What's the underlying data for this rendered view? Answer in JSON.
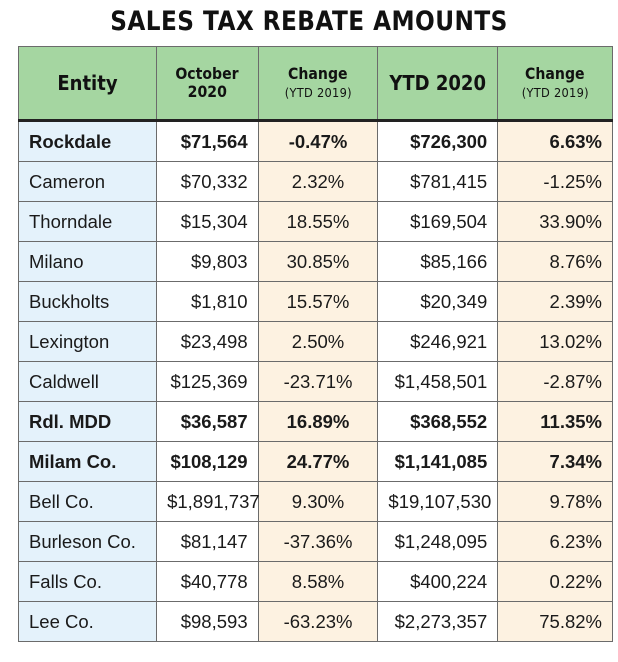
{
  "title": "SALES TAX REBATE AMOUNTS",
  "headers": {
    "entity": "Entity",
    "october_line1": "October",
    "october_line2": "2020",
    "change1_line1": "Change",
    "change1_line2": "(YTD 2019)",
    "ytd": "YTD 2020",
    "change2_line1": "Change",
    "change2_line2": "(YTD 2019)"
  },
  "colors": {
    "header_bg": "#a5d6a1",
    "entity_col_bg": "#e4f2fb",
    "change_col_bg": "#fdf2e1",
    "negative_bold": "#e0352b",
    "negative": "#e53a7a"
  },
  "rows": [
    {
      "entity": "Rockdale",
      "october": "$71,564",
      "change_month": "-0.47%",
      "ytd": "$726,300",
      "change_ytd": "6.63%"
    },
    {
      "entity": "Cameron",
      "october": "$70,332",
      "change_month": "2.32%",
      "ytd": "$781,415",
      "change_ytd": "-1.25%"
    },
    {
      "entity": "Thorndale",
      "october": "$15,304",
      "change_month": "18.55%",
      "ytd": "$169,504",
      "change_ytd": "33.90%"
    },
    {
      "entity": "Milano",
      "october": "$9,803",
      "change_month": "30.85%",
      "ytd": "$85,166",
      "change_ytd": "8.76%"
    },
    {
      "entity": "Buckholts",
      "october": "$1,810",
      "change_month": "15.57%",
      "ytd": "$20,349",
      "change_ytd": "2.39%"
    },
    {
      "entity": "Lexington",
      "october": "$23,498",
      "change_month": "2.50%",
      "ytd": "$246,921",
      "change_ytd": "13.02%"
    },
    {
      "entity": "Caldwell",
      "october": "$125,369",
      "change_month": "-23.71%",
      "ytd": "$1,458,501",
      "change_ytd": "-2.87%"
    },
    {
      "entity": "Rdl. MDD",
      "october": "$36,587",
      "change_month": "16.89%",
      "ytd": "$368,552",
      "change_ytd": "11.35%"
    },
    {
      "entity": "Milam Co.",
      "october": "$108,129",
      "change_month": "24.77%",
      "ytd": "$1,141,085",
      "change_ytd": "7.34%"
    },
    {
      "entity": "Bell Co.",
      "october": "$1,891,737",
      "change_month": "9.30%",
      "ytd": "$19,107,530",
      "change_ytd": "9.78%"
    },
    {
      "entity": "Burleson Co.",
      "october": "$81,147",
      "change_month": "-37.36%",
      "ytd": "$1,248,095",
      "change_ytd": "6.23%"
    },
    {
      "entity": "Falls Co.",
      "october": "$40,778",
      "change_month": "8.58%",
      "ytd": "$400,224",
      "change_ytd": "0.22%"
    },
    {
      "entity": "Lee Co.",
      "october": "$98,593",
      "change_month": "-63.23%",
      "ytd": "$2,273,357",
      "change_ytd": "75.82%"
    }
  ]
}
